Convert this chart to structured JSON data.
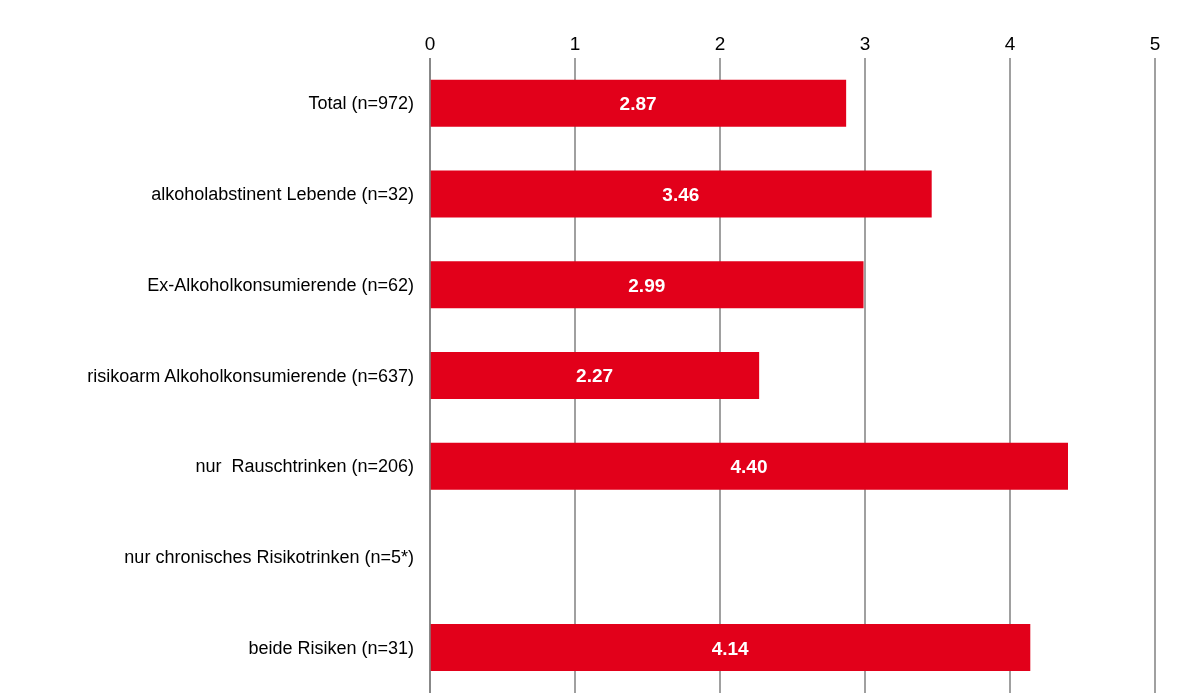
{
  "chart_data": {
    "type": "bar",
    "orientation": "horizontal",
    "categories": [
      "Total (n=972)",
      "alkoholabstinent Lebende (n=32)",
      "Ex-Alkoholkonsumierende (n=62)",
      "risikoarm Alkoholkonsumierende (n=637)",
      "nur  Rauschtrinken (n=206)",
      "nur chronisches Risikotrinken (n=5*)",
      "beide Risiken (n=31)"
    ],
    "values": [
      2.87,
      3.46,
      2.99,
      2.27,
      4.4,
      null,
      4.14
    ],
    "value_labels": [
      "2.87",
      "3.46",
      "2.99",
      "2.27",
      "4.40",
      null,
      "4.14"
    ],
    "color": "#e2001a",
    "xlim": [
      0,
      5
    ],
    "xticks": [
      0,
      1,
      2,
      3,
      4,
      5
    ],
    "grid": "x"
  }
}
